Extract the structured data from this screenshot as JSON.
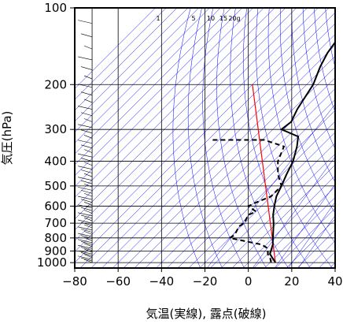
{
  "chart_data": {
    "type": "line",
    "title": "",
    "xlabel": "気温(実線), 露点(破線)",
    "ylabel": "気圧(hPa)",
    "xlim": [
      -80,
      40
    ],
    "ylim": [
      1050,
      100
    ],
    "y_scale": "log",
    "x_ticks": [
      -80,
      -60,
      -40,
      -20,
      0,
      20,
      40
    ],
    "x_tick_labels": [
      "−80",
      "−60",
      "−40",
      "−20",
      "0",
      "20",
      "40"
    ],
    "y_ticks": [
      100,
      200,
      300,
      400,
      500,
      600,
      700,
      800,
      900,
      1000
    ],
    "y_tick_labels": [
      "100",
      "200",
      "300",
      "400",
      "500",
      "600",
      "700",
      "800",
      "900",
      "1000"
    ],
    "mixing_ratio_labels": [
      "1",
      "5",
      "10",
      "15",
      "20g"
    ],
    "mixing_ratio_values": [
      1,
      5,
      10,
      15,
      20
    ],
    "series": [
      {
        "style": "solid",
        "values": [
          {
            "p": 1000,
            "t": 12.5
          },
          {
            "p": 925,
            "t": 6
          },
          {
            "p": 850,
            "t": 3
          },
          {
            "p": 800,
            "t": 0
          },
          {
            "p": 700,
            "t": -6.5
          },
          {
            "p": 650,
            "t": -10.5
          },
          {
            "p": 600,
            "t": -14
          },
          {
            "p": 550,
            "t": -17.5
          },
          {
            "p": 500,
            "t": -20
          },
          {
            "p": 450,
            "t": -23
          },
          {
            "p": 400,
            "t": -26
          },
          {
            "p": 350,
            "t": -31
          },
          {
            "p": 320,
            "t": -35
          },
          {
            "p": 300,
            "t": -46
          },
          {
            "p": 280,
            "t": -45
          },
          {
            "p": 250,
            "t": -48
          },
          {
            "p": 200,
            "t": -52
          },
          {
            "p": 170,
            "t": -57
          },
          {
            "p": 150,
            "t": -60
          },
          {
            "p": 130,
            "t": -62
          },
          {
            "p": 110,
            "t": -64
          },
          {
            "p": 100,
            "t": -63
          }
        ]
      },
      {
        "style": "dashed",
        "values": [
          {
            "p": 1000,
            "t": 10.5
          },
          {
            "p": 960,
            "t": 8
          },
          {
            "p": 925,
            "t": 5
          },
          {
            "p": 880,
            "t": 2.5
          },
          {
            "p": 850,
            "t": -2
          },
          {
            "p": 800,
            "t": -20
          },
          {
            "p": 780,
            "t": -19
          },
          {
            "p": 720,
            "t": -21
          },
          {
            "p": 700,
            "t": -20
          },
          {
            "p": 650,
            "t": -22
          },
          {
            "p": 630,
            "t": -20
          },
          {
            "p": 600,
            "t": -26
          },
          {
            "p": 580,
            "t": -24
          },
          {
            "p": 550,
            "t": -20
          },
          {
            "p": 500,
            "t": -20
          },
          {
            "p": 450,
            "t": -27
          },
          {
            "p": 400,
            "t": -33
          },
          {
            "p": 350,
            "t": -37
          },
          {
            "p": 330,
            "t": -49
          },
          {
            "p": 330,
            "t": -74
          }
        ]
      }
    ],
    "lifted_parcel": {
      "color": "#ff0000",
      "from": {
        "p": 1000,
        "t": 12.5
      },
      "to": {
        "p": 200,
        "t": -80
      }
    },
    "wind_profile_present": true,
    "line_colors": {
      "isotherm": "#0000ff",
      "sounding": "#000000",
      "parcel": "#ff0000",
      "grid": "#000000"
    }
  }
}
